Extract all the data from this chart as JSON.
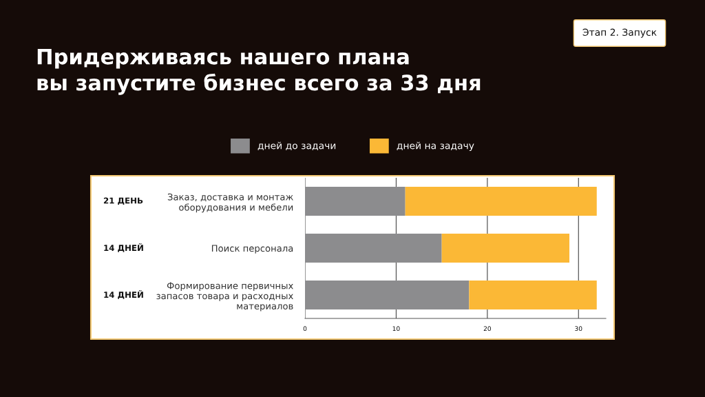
{
  "chart_data": {
    "type": "bar",
    "orientation": "horizontal",
    "stacked": true,
    "title": "Придерживаясь нашего плана\nвы запустите бизнес всего за 33 дня",
    "annotations": [
      "Этап 2. Запуск"
    ],
    "categories": [
      "Заказ, доставка и монтаж\nоборудования и мебели",
      "Поиск персонала",
      "Формирование первичных\nзапасов товара и расходных\nматериалов"
    ],
    "series": [
      {
        "name": "дней до задачи",
        "color": "#8c8c8e",
        "values": [
          11,
          15,
          18
        ]
      },
      {
        "name": "дней на задачу",
        "color": "#fbb836",
        "values": [
          21,
          14,
          14
        ],
        "value_labels": [
          "21 ДЕНЬ",
          "14 ДНЕЙ",
          "14 ДНЕЙ"
        ]
      }
    ],
    "xlim": [
      0,
      33
    ],
    "xticks": [
      0,
      10,
      20,
      30
    ],
    "grid": "x",
    "legend": "top"
  }
}
